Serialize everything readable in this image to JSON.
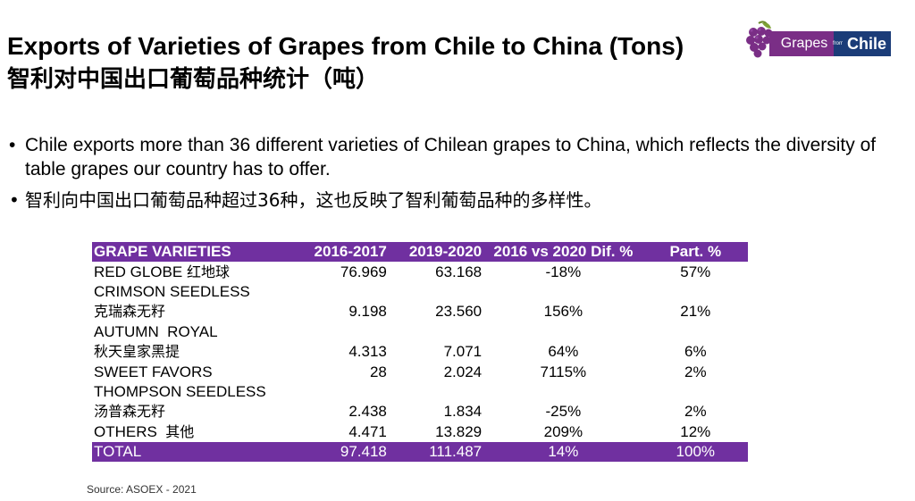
{
  "title": {
    "en": "Exports of Varieties of Grapes from Chile to China (Tons)",
    "zh": "智利对中国出口葡萄品种统计（吨）"
  },
  "logo": {
    "left": "Grapes",
    "from": "from",
    "right": "Chile"
  },
  "bullets": [
    {
      "marker": "•",
      "text": "Chile exports more than 36 different varieties of Chilean grapes to China, which reflects the diversity of table grapes our country has to offer."
    },
    {
      "marker": "•",
      "text": "智利向中国出口葡萄品种超过36种，这也反映了智利葡萄品种的多样性。"
    }
  ],
  "table": {
    "headers": [
      "GRAPE VARIETIES",
      "2016-2017",
      "2019-2020",
      "2016 vs 2020 Dif. %",
      "Part. %"
    ],
    "rows": [
      {
        "name_en": "RED GLOBE",
        "name_zh": "红地球",
        "v1617": "76.969",
        "v1920": "63.168",
        "dif": "-18%",
        "part": "57%"
      },
      {
        "name_en": "CRIMSON SEEDLESS",
        "name_zh": "克瑞森无籽",
        "v1617": "9.198",
        "v1920": "23.560",
        "dif": "156%",
        "part": "21%"
      },
      {
        "name_en": "AUTUMN  ROYAL",
        "name_zh": "秋天皇家黑提",
        "v1617": "4.313",
        "v1920": "7.071",
        "dif": "64%",
        "part": "6%"
      },
      {
        "name_en": "SWEET FAVORS",
        "name_zh": "",
        "v1617": "28",
        "v1920": "2.024",
        "dif": "7115%",
        "part": "2%"
      },
      {
        "name_en": "THOMPSON SEEDLESS",
        "name_zh": "汤普森无籽",
        "v1617": "2.438",
        "v1920": "1.834",
        "dif": "-25%",
        "part": "2%"
      },
      {
        "name_en": "OTHERS",
        "name_zh": "其他",
        "v1617": "4.471",
        "v1920": "13.829",
        "dif": "209%",
        "part": "12%"
      }
    ],
    "total": {
      "label": "TOTAL",
      "v1617": "97.418",
      "v1920": "111.487",
      "dif": "14%",
      "part": "100%"
    }
  },
  "source": "Source: ASOEX - 2021",
  "colors": {
    "header_bg": "#7030a0",
    "logo_purple": "#7a2e86",
    "logo_blue": "#1b3c78"
  },
  "icons": {
    "logo": "grape-cluster-icon"
  }
}
